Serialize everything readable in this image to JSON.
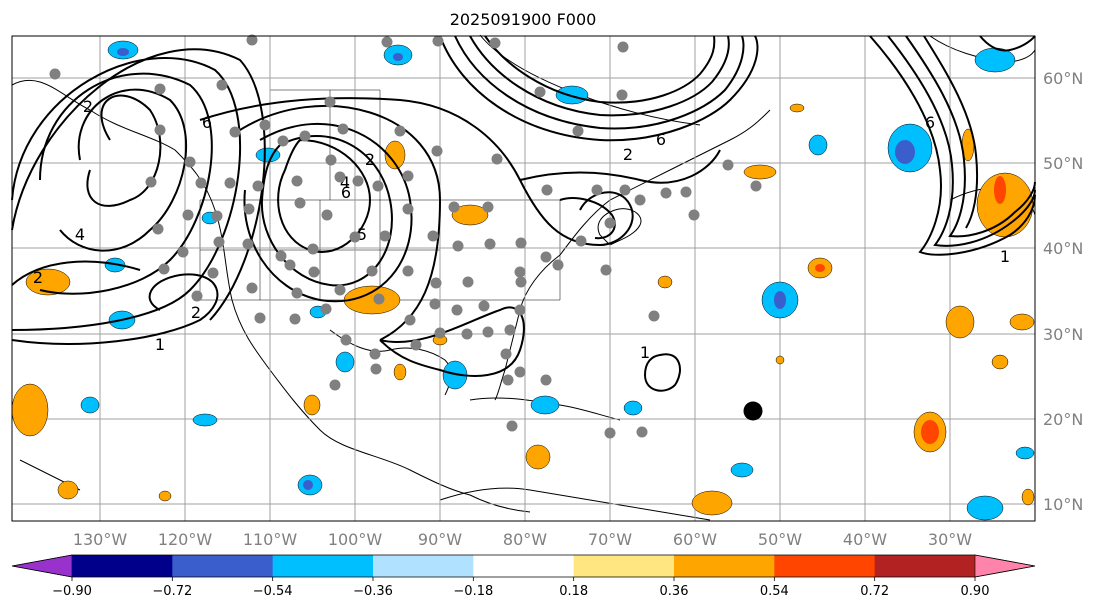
{
  "title": "2025091900 F000",
  "map": {
    "lon_labels": [
      "130°W",
      "120°W",
      "110°W",
      "100°W",
      "90°W",
      "80°W",
      "70°W",
      "60°W",
      "50°W",
      "40°W",
      "30°W"
    ],
    "lat_labels": [
      "60°N",
      "50°N",
      "40°N",
      "30°N",
      "20°N",
      "10°N"
    ],
    "contour_labels": [
      "2",
      "2",
      "4",
      "6",
      "5",
      "1",
      "4",
      "2",
      "2",
      "1",
      "1",
      "2",
      "6",
      "6",
      "6"
    ],
    "colors": {
      "ocean": "#ffffff",
      "coast": "#000000",
      "grid": "#a0a0a0",
      "station_dot": "#808080",
      "marker": "#000000"
    }
  },
  "colorbar": {
    "ticks": [
      "−0.90",
      "−0.72",
      "−0.54",
      "−0.36",
      "−0.18",
      "0.18",
      "0.36",
      "0.54",
      "0.72",
      "0.90"
    ],
    "levels": [
      -0.9,
      -0.72,
      -0.54,
      -0.36,
      -0.18,
      0.18,
      0.36,
      0.54,
      0.72,
      0.9
    ],
    "colors": [
      "#9932cc",
      "#00008b",
      "#3a5fcd",
      "#00bfff",
      "#b0e2ff",
      "#ffffff",
      "#ffe680",
      "#ffa500",
      "#ff4500",
      "#b22222",
      "#ff83aa"
    ],
    "under_color": "#9932cc",
    "over_color": "#ff83aa"
  }
}
